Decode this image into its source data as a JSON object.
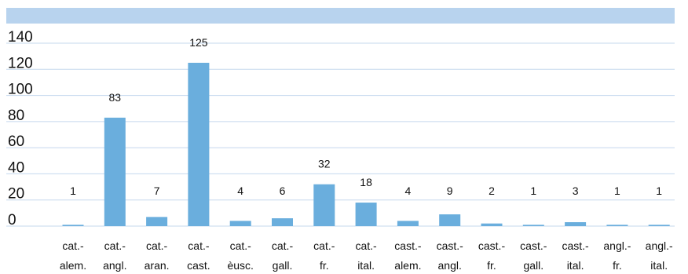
{
  "colors": {
    "bar": "#6aaedd",
    "band": "#b8d3ee",
    "grid": "#c5d8ee"
  },
  "chart_data": {
    "type": "bar",
    "categories": [
      [
        "cat.-",
        "alem."
      ],
      [
        "cat.-",
        "angl."
      ],
      [
        "cat.-",
        "aran."
      ],
      [
        "cat.-",
        "cast."
      ],
      [
        "cat.-",
        "èusc."
      ],
      [
        "cat.-",
        "gall."
      ],
      [
        "cat.-",
        "fr."
      ],
      [
        "cat.-",
        "ital."
      ],
      [
        "cast.-",
        "alem."
      ],
      [
        "cast.-",
        "angl."
      ],
      [
        "cast.-",
        "fr."
      ],
      [
        "cast.-",
        "gall."
      ],
      [
        "cast.-",
        "ital."
      ],
      [
        "angl.-",
        "fr."
      ],
      [
        "angl.-",
        "ital."
      ]
    ],
    "values": [
      1,
      83,
      7,
      125,
      4,
      6,
      32,
      18,
      4,
      9,
      2,
      1,
      3,
      1,
      1
    ],
    "data_labels": [
      "1",
      "83",
      "7",
      "125",
      "4",
      "6",
      "32",
      "18",
      "4",
      "9",
      "2",
      "1",
      "3",
      "1",
      "1"
    ],
    "y_ticks": [
      140,
      120,
      100,
      80,
      60,
      40,
      20,
      0
    ],
    "ylim": [
      0,
      140
    ],
    "title": "",
    "xlabel": "",
    "ylabel": "",
    "grid": true,
    "legend": "none"
  }
}
